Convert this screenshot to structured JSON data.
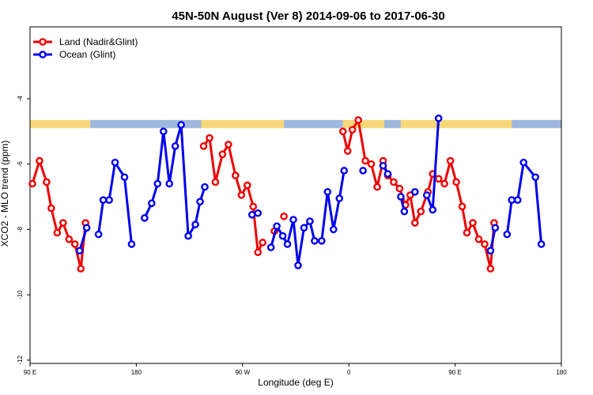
{
  "chart_data": {
    "type": "line",
    "title": "45N-50N August (Ver 8)   2014-09-06 to 2017-06-30",
    "xlabel": "Longitude (deg E)",
    "ylabel": "XCO2 - MLO trend (ppm)",
    "x_ticks": [
      {
        "value": 90,
        "label": "90 E"
      },
      {
        "value": 180,
        "label": "180"
      },
      {
        "value": 270,
        "label": "90 W"
      },
      {
        "value": 360,
        "label": "0"
      },
      {
        "value": 450,
        "label": "90 E"
      },
      {
        "value": 540,
        "label": "180"
      }
    ],
    "y_ticks": [
      -12,
      -10,
      -8,
      -6,
      -4
    ],
    "xlim": [
      90,
      540
    ],
    "ylim": [
      -12.1,
      -1.8
    ],
    "grid": false,
    "legend_position": "top-left",
    "land_ocean_band": {
      "y_range": [
        -4.9,
        -4.65
      ],
      "land_color": "#f6d87a",
      "ocean_color": "#9db9dc",
      "segments": [
        {
          "type": "land",
          "x": [
            90,
            141
          ]
        },
        {
          "type": "ocean",
          "x": [
            141,
            235
          ]
        },
        {
          "type": "land",
          "x": [
            235,
            305
          ]
        },
        {
          "type": "ocean",
          "x": [
            305,
            355
          ]
        },
        {
          "type": "land",
          "x": [
            355,
            390
          ]
        },
        {
          "type": "ocean",
          "x": [
            390,
            404
          ]
        },
        {
          "type": "land",
          "x": [
            404,
            498
          ]
        },
        {
          "type": "ocean",
          "x": [
            498,
            540
          ]
        }
      ]
    },
    "series": [
      {
        "name": "Land (Nadir&Glint)",
        "color": "#ee0000",
        "segments": [
          [
            [
              92,
              -6.6
            ],
            [
              98,
              -5.9
            ],
            [
              104,
              -6.55
            ],
            [
              108,
              -7.35
            ],
            [
              113,
              -8.1
            ],
            [
              118,
              -7.8
            ],
            [
              123,
              -8.3
            ],
            [
              128,
              -8.45
            ],
            [
              133,
              -9.2
            ],
            [
              137,
              -7.8
            ]
          ],
          [
            [
              237,
              -5.45
            ],
            [
              242,
              -5.2
            ],
            [
              247,
              -6.55
            ],
            [
              253,
              -5.7
            ],
            [
              258,
              -5.4
            ],
            [
              264,
              -6.35
            ],
            [
              269,
              -6.95
            ],
            [
              274,
              -6.65
            ],
            [
              279,
              -7.3
            ],
            [
              283,
              -8.7
            ],
            [
              287,
              -8.4
            ]
          ],
          [
            [
              297,
              -8.05
            ]
          ],
          [
            [
              305,
              -7.6
            ]
          ],
          [
            [
              355,
              -5.0
            ],
            [
              359,
              -5.6
            ],
            [
              363,
              -4.95
            ],
            [
              368,
              -4.65
            ],
            [
              374,
              -5.9
            ],
            [
              379,
              -6.0
            ],
            [
              384,
              -6.7
            ],
            [
              389,
              -5.9
            ],
            [
              393,
              -6.35
            ],
            [
              398,
              -6.55
            ],
            [
              403,
              -6.75
            ],
            [
              408,
              -7.25
            ],
            [
              412,
              -6.95
            ],
            [
              416,
              -7.8
            ],
            [
              421,
              -7.45
            ],
            [
              427,
              -6.85
            ],
            [
              431,
              -6.3
            ],
            [
              436,
              -6.45
            ],
            [
              441,
              -6.6
            ],
            [
              446,
              -5.9
            ],
            [
              451,
              -6.55
            ],
            [
              456,
              -7.3
            ],
            [
              460,
              -8.1
            ],
            [
              465,
              -7.8
            ],
            [
              470,
              -8.3
            ],
            [
              475,
              -8.45
            ],
            [
              480,
              -9.2
            ],
            [
              483,
              -7.8
            ]
          ]
        ]
      },
      {
        "name": "Ocean (Glint)",
        "color": "#0000ee",
        "segments": [
          [
            [
              132,
              -8.65
            ],
            [
              138,
              -7.95
            ]
          ],
          [
            [
              148,
              -8.15
            ],
            [
              152,
              -7.1
            ],
            [
              157,
              -7.1
            ],
            [
              162,
              -5.95
            ],
            [
              170,
              -6.4
            ],
            [
              176,
              -8.45
            ]
          ],
          [
            [
              187,
              -7.65
            ],
            [
              193,
              -7.2
            ],
            [
              198,
              -6.6
            ],
            [
              203,
              -5.0
            ],
            [
              208,
              -6.6
            ],
            [
              213,
              -5.45
            ],
            [
              218,
              -4.8
            ],
            [
              224,
              -8.2
            ],
            [
              230,
              -7.85
            ],
            [
              234,
              -7.15
            ],
            [
              238,
              -6.7
            ]
          ],
          [
            [
              278,
              -7.55
            ],
            [
              283,
              -7.5
            ]
          ],
          [
            [
              294,
              -8.55
            ],
            [
              299,
              -7.9
            ],
            [
              304,
              -8.2
            ],
            [
              308,
              -8.45
            ],
            [
              313,
              -7.7
            ],
            [
              317,
              -9.1
            ],
            [
              322,
              -7.95
            ],
            [
              327,
              -7.75
            ],
            [
              331,
              -8.35
            ],
            [
              337,
              -8.35
            ],
            [
              342,
              -6.85
            ],
            [
              347,
              -8.0
            ],
            [
              352,
              -7.05
            ],
            [
              356,
              -6.2
            ]
          ],
          [
            [
              372,
              -6.2
            ]
          ],
          [
            [
              389,
              -6.05
            ],
            [
              393,
              -6.3
            ]
          ],
          [
            [
              404,
              -7.0
            ],
            [
              407,
              -7.45
            ]
          ],
          [
            [
              416,
              -6.85
            ]
          ],
          [
            [
              426,
              -6.95
            ],
            [
              431,
              -7.4
            ],
            [
              436,
              -4.6
            ]
          ],
          [
            [
              480,
              -8.65
            ],
            [
              484,
              -7.95
            ]
          ],
          [
            [
              494,
              -8.15
            ],
            [
              498,
              -7.1
            ],
            [
              503,
              -7.1
            ],
            [
              508,
              -5.95
            ],
            [
              518,
              -6.4
            ],
            [
              523,
              -8.45
            ]
          ]
        ]
      }
    ]
  }
}
